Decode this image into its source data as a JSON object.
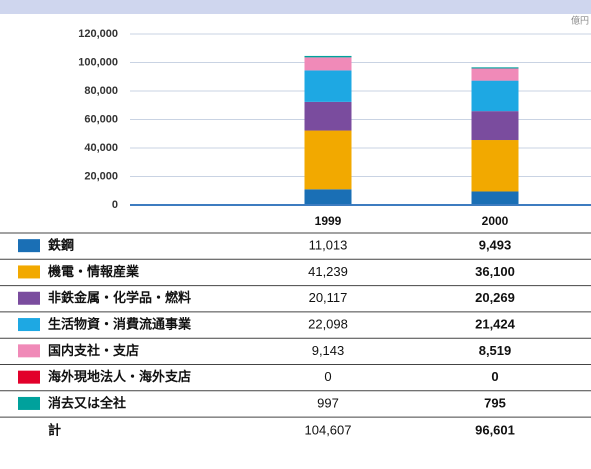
{
  "chart_data": {
    "type": "bar",
    "stacked": true,
    "unit_label": "億円",
    "categories": [
      "1999",
      "2000"
    ],
    "series": [
      {
        "name": "鉄鋼",
        "color": "#1a6fb5",
        "values": [
          11013,
          9493
        ],
        "value_labels": [
          "11,013",
          "9,493"
        ]
      },
      {
        "name": "機電・情報産業",
        "color": "#f2a900",
        "values": [
          41239,
          36100
        ],
        "value_labels": [
          "41,239",
          "36,100"
        ]
      },
      {
        "name": "非鉄金属・化学品・燃料",
        "color": "#7a4c9e",
        "values": [
          20117,
          20269
        ],
        "value_labels": [
          "20,117",
          "20,269"
        ]
      },
      {
        "name": "生活物資・消費流通事業",
        "color": "#1ea8e3",
        "values": [
          22098,
          21424
        ],
        "value_labels": [
          "22,098",
          "21,424"
        ]
      },
      {
        "name": "国内支社・支店",
        "color": "#f08ab8",
        "values": [
          9143,
          8519
        ],
        "value_labels": [
          "9,143",
          "8,519"
        ]
      },
      {
        "name": "海外現地法人・海外支店",
        "color": "#e2002b",
        "values": [
          0,
          0
        ]
      },
      {
        "name": "消去又は全社",
        "color": "#00a19c",
        "values": [
          997,
          795
        ]
      }
    ],
    "total_name": "計",
    "totals": [
      "104,607",
      "96,601"
    ],
    "ylim": [
      0,
      120000
    ],
    "yticks": [
      0,
      {
        "value": 20000,
        "label": "20,000"
      },
      {
        "value": 40000,
        "label": "40,000"
      },
      {
        "value": 60000,
        "label": "60,000"
      },
      {
        "value": 80000,
        "label": "80,000"
      },
      {
        "value": 100000,
        "label": "100,000"
      },
      {
        "value": 120000,
        "label": "120,000"
      }
    ],
    "grid": true
  }
}
